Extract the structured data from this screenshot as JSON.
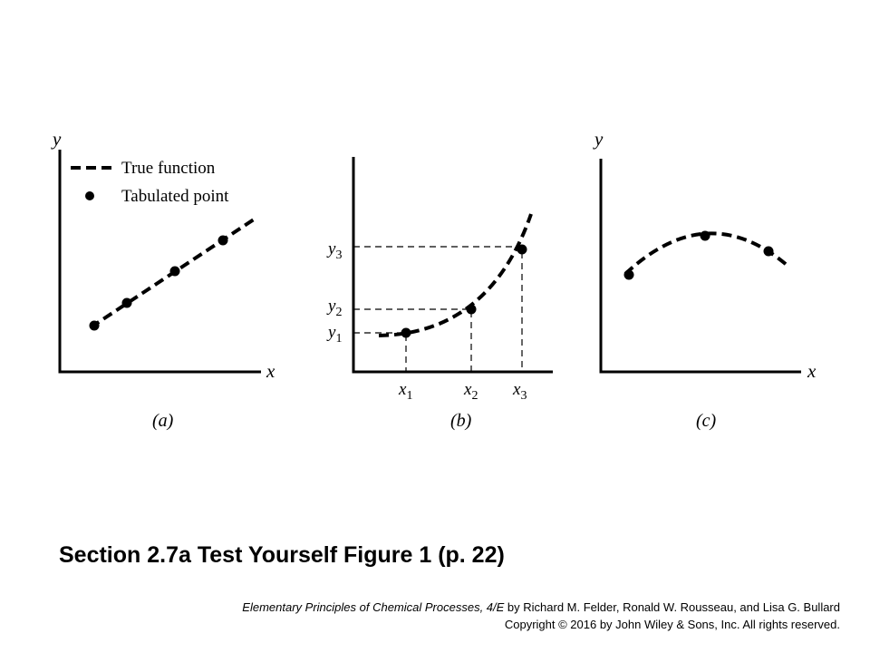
{
  "figure": {
    "legend": {
      "true_function": "True function",
      "tabulated_point": "Tabulated point"
    },
    "axis_y": "y",
    "axis_x": "x",
    "panels": [
      {
        "label": "(a)"
      },
      {
        "label": "(b)",
        "x_ticks": [
          {
            "main": "x",
            "sub": "1"
          },
          {
            "main": "x",
            "sub": "2"
          },
          {
            "main": "x",
            "sub": "3"
          }
        ],
        "y_ticks": [
          {
            "main": "y",
            "sub": "1"
          },
          {
            "main": "y",
            "sub": "2"
          },
          {
            "main": "y",
            "sub": "3"
          }
        ]
      },
      {
        "label": "(c)"
      }
    ]
  },
  "slide": {
    "title": "Section 2.7a Test Yourself Figure 1 (p. 22)",
    "book_title": "Elementary Principles of Chemical Processes, 4/E",
    "authors": " by  Richard M. Felder, Ronald W. Rousseau, and Lisa G. Bullard",
    "copyright": "Copyright © 2016 by John Wiley & Sons, Inc.  All rights reserved."
  }
}
